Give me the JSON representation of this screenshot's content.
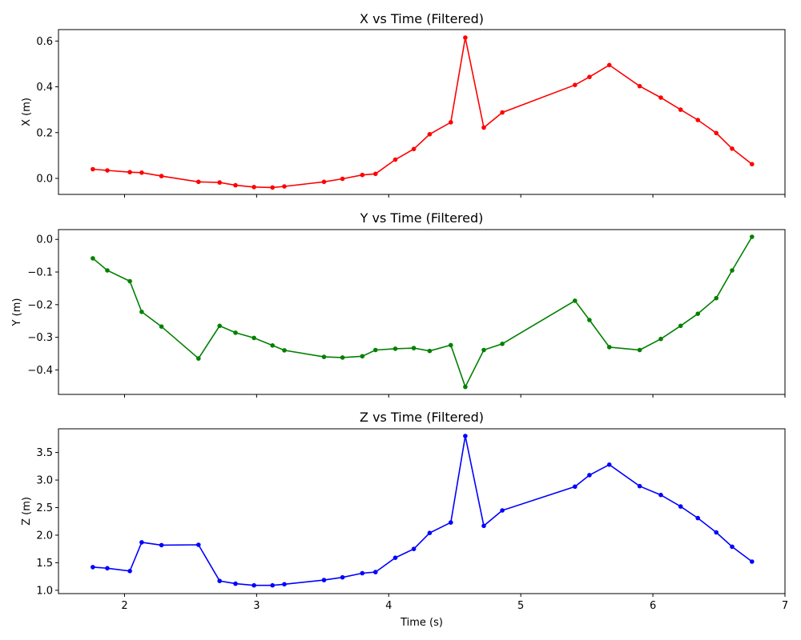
{
  "chart_data": [
    {
      "type": "line",
      "title": "X vs Time (Filtered)",
      "xlabel": "",
      "ylabel": "X (m)",
      "color": "#ff0000",
      "xlim": [
        1.5,
        7.0
      ],
      "ylim": [
        -0.07,
        0.65
      ],
      "xticks": [
        2,
        3,
        4,
        5,
        6,
        7
      ],
      "xtick_labels": [
        "",
        "",
        "",
        "",
        "",
        ""
      ],
      "yticks": [
        0.0,
        0.2,
        0.4,
        0.6
      ],
      "ytick_labels": [
        "0.0",
        "0.2",
        "0.4",
        "0.6"
      ],
      "grid": false,
      "x": [
        1.76,
        1.87,
        2.04,
        2.13,
        2.28,
        2.56,
        2.72,
        2.84,
        2.98,
        3.12,
        3.21,
        3.51,
        3.65,
        3.8,
        3.9,
        4.05,
        4.19,
        4.31,
        4.47,
        4.58,
        4.72,
        4.86,
        5.41,
        5.52,
        5.67,
        5.9,
        6.06,
        6.21,
        6.34,
        6.48,
        6.6,
        6.75
      ],
      "y": [
        0.04,
        0.035,
        0.027,
        0.025,
        0.01,
        -0.015,
        -0.018,
        -0.03,
        -0.038,
        -0.04,
        -0.035,
        -0.015,
        -0.002,
        0.015,
        0.02,
        0.082,
        0.128,
        0.193,
        0.245,
        0.615,
        0.222,
        0.288,
        0.408,
        0.443,
        0.495,
        0.403,
        0.353,
        0.3,
        0.255,
        0.198,
        0.13,
        0.062
      ]
    },
    {
      "type": "line",
      "title": "Y vs Time (Filtered)",
      "xlabel": "",
      "ylabel": "Y (m)",
      "color": "#008000",
      "xlim": [
        1.5,
        7.0
      ],
      "ylim": [
        -0.475,
        0.03
      ],
      "xticks": [
        2,
        3,
        4,
        5,
        6,
        7
      ],
      "xtick_labels": [
        "",
        "",
        "",
        "",
        "",
        ""
      ],
      "yticks": [
        0.0,
        -0.1,
        -0.2,
        -0.3,
        -0.4
      ],
      "ytick_labels": [
        "0.0",
        "−0.1",
        "−0.2",
        "−0.3",
        "−0.4"
      ],
      "grid": false,
      "x": [
        1.76,
        1.87,
        2.04,
        2.13,
        2.28,
        2.56,
        2.72,
        2.84,
        2.98,
        3.12,
        3.21,
        3.51,
        3.65,
        3.8,
        3.9,
        4.05,
        4.19,
        4.31,
        4.47,
        4.58,
        4.72,
        4.86,
        5.41,
        5.52,
        5.67,
        5.9,
        6.06,
        6.21,
        6.34,
        6.48,
        6.6,
        6.75
      ],
      "y": [
        -0.058,
        -0.095,
        -0.128,
        -0.222,
        -0.267,
        -0.365,
        -0.265,
        -0.286,
        -0.302,
        -0.325,
        -0.34,
        -0.36,
        -0.362,
        -0.358,
        -0.339,
        -0.335,
        -0.333,
        -0.342,
        -0.324,
        -0.452,
        -0.339,
        -0.32,
        -0.188,
        -0.247,
        -0.33,
        -0.339,
        -0.305,
        -0.265,
        -0.228,
        -0.18,
        -0.095,
        0.008
      ]
    },
    {
      "type": "line",
      "title": "Z vs Time (Filtered)",
      "xlabel": "Time (s)",
      "ylabel": "Z (m)",
      "color": "#0000ff",
      "xlim": [
        1.5,
        7.0
      ],
      "ylim": [
        0.94,
        3.93
      ],
      "xticks": [
        2,
        3,
        4,
        5,
        6,
        7
      ],
      "xtick_labels": [
        "2",
        "3",
        "4",
        "5",
        "6",
        "7"
      ],
      "yticks": [
        1.0,
        1.5,
        2.0,
        2.5,
        3.0,
        3.5
      ],
      "ytick_labels": [
        "1.0",
        "1.5",
        "2.0",
        "2.5",
        "3.0",
        "3.5"
      ],
      "grid": false,
      "x": [
        1.76,
        1.87,
        2.04,
        2.13,
        2.28,
        2.56,
        2.72,
        2.84,
        2.98,
        3.12,
        3.21,
        3.51,
        3.65,
        3.8,
        3.9,
        4.05,
        4.19,
        4.31,
        4.47,
        4.58,
        4.72,
        4.86,
        5.41,
        5.52,
        5.67,
        5.9,
        6.06,
        6.21,
        6.34,
        6.48,
        6.6,
        6.75
      ],
      "y": [
        1.42,
        1.4,
        1.35,
        1.87,
        1.82,
        1.825,
        1.17,
        1.12,
        1.09,
        1.09,
        1.11,
        1.185,
        1.235,
        1.31,
        1.33,
        1.59,
        1.75,
        2.04,
        2.23,
        3.8,
        2.17,
        2.45,
        2.88,
        3.09,
        3.28,
        2.89,
        2.73,
        2.52,
        2.31,
        2.05,
        1.79,
        1.52
      ]
    }
  ]
}
